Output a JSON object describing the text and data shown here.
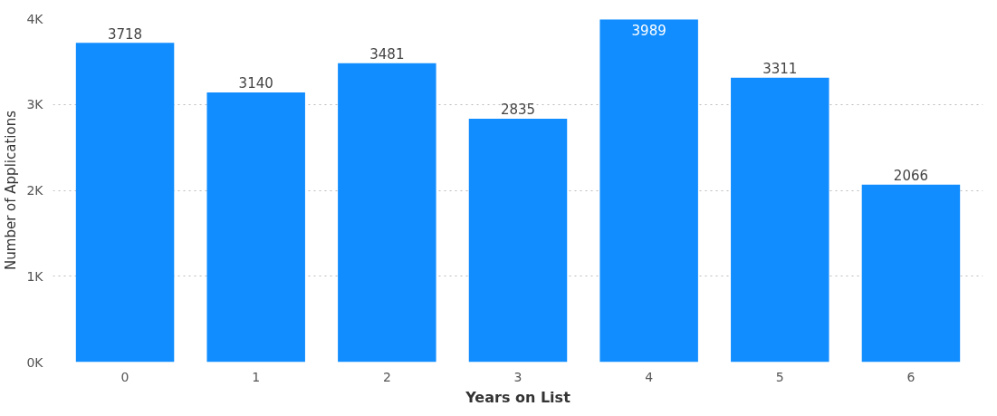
{
  "chart_data": {
    "type": "bar",
    "xlabel": "Years on List",
    "ylabel": "Number of Applications",
    "categories": [
      "0",
      "1",
      "2",
      "3",
      "4",
      "5",
      "6"
    ],
    "values": [
      3718,
      3140,
      3481,
      2835,
      3989,
      3311,
      2066
    ],
    "color": "#118dff",
    "ylim": [
      0,
      4000
    ],
    "yticks": [
      {
        "value": 0,
        "label": "0K"
      },
      {
        "value": 1000,
        "label": "1K"
      },
      {
        "value": 2000,
        "label": "2K"
      },
      {
        "value": 3000,
        "label": "3K"
      },
      {
        "value": 4000,
        "label": "4K"
      }
    ],
    "grid": "y",
    "data_labels": true
  }
}
